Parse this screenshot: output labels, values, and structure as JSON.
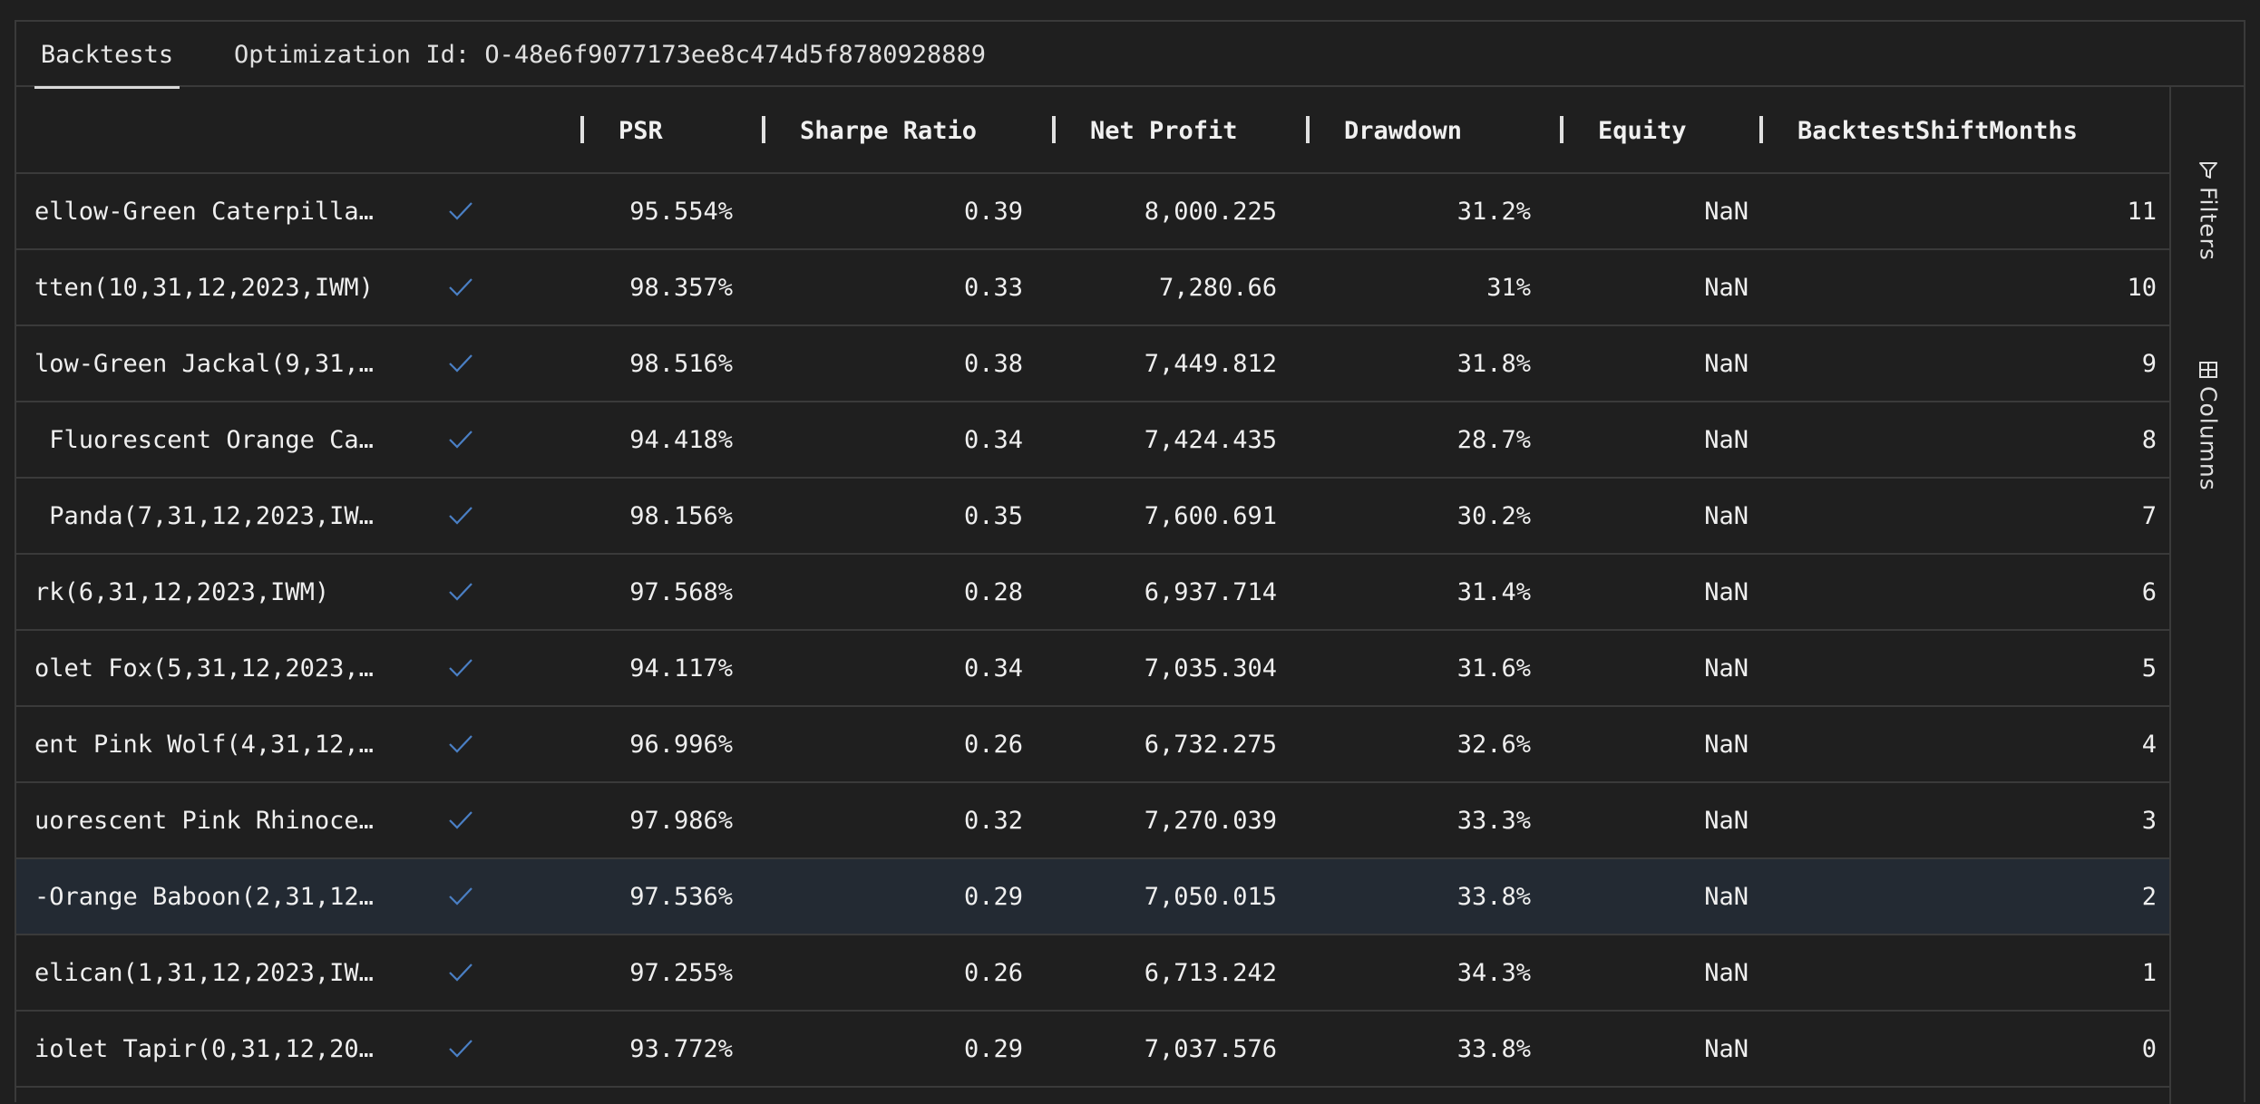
{
  "tabs": {
    "backtests": "Backtests",
    "optimization": "Optimization Id: O-48e6f9077173ee8c474d5f8780928889"
  },
  "columns": {
    "psr": "PSR",
    "sharpe": "Sharpe Ratio",
    "net_profit": "Net Profit",
    "drawdown": "Drawdown",
    "equity": "Equity",
    "shift": "BacktestShiftMonths"
  },
  "sidebar": {
    "filters": "Filters",
    "columns": "Columns"
  },
  "selected_row_index": 9,
  "colors": {
    "background": "#1f1f1f",
    "selected_row": "#232a33",
    "check_accent": "#4a7fc4",
    "border": "#3a3a3a"
  },
  "rows": [
    {
      "name": "ellow-Green Caterpilla…",
      "psr": "95.554%",
      "sharpe": "0.39",
      "net_profit": "8,000.225",
      "drawdown": "31.2%",
      "equity": "NaN",
      "shift": "11"
    },
    {
      "name": "tten(10,31,12,2023,IWM)",
      "psr": "98.357%",
      "sharpe": "0.33",
      "net_profit": "7,280.66",
      "drawdown": "31%",
      "equity": "NaN",
      "shift": "10"
    },
    {
      "name": "low-Green Jackal(9,31,…",
      "psr": "98.516%",
      "sharpe": "0.38",
      "net_profit": "7,449.812",
      "drawdown": "31.8%",
      "equity": "NaN",
      "shift": "9"
    },
    {
      "name": " Fluorescent Orange Ca…",
      "psr": "94.418%",
      "sharpe": "0.34",
      "net_profit": "7,424.435",
      "drawdown": "28.7%",
      "equity": "NaN",
      "shift": "8"
    },
    {
      "name": " Panda(7,31,12,2023,IW…",
      "psr": "98.156%",
      "sharpe": "0.35",
      "net_profit": "7,600.691",
      "drawdown": "30.2%",
      "equity": "NaN",
      "shift": "7"
    },
    {
      "name": "rk(6,31,12,2023,IWM)",
      "psr": "97.568%",
      "sharpe": "0.28",
      "net_profit": "6,937.714",
      "drawdown": "31.4%",
      "equity": "NaN",
      "shift": "6"
    },
    {
      "name": "olet Fox(5,31,12,2023,…",
      "psr": "94.117%",
      "sharpe": "0.34",
      "net_profit": "7,035.304",
      "drawdown": "31.6%",
      "equity": "NaN",
      "shift": "5"
    },
    {
      "name": "ent Pink Wolf(4,31,12,…",
      "psr": "96.996%",
      "sharpe": "0.26",
      "net_profit": "6,732.275",
      "drawdown": "32.6%",
      "equity": "NaN",
      "shift": "4"
    },
    {
      "name": "uorescent Pink Rhinoce…",
      "psr": "97.986%",
      "sharpe": "0.32",
      "net_profit": "7,270.039",
      "drawdown": "33.3%",
      "equity": "NaN",
      "shift": "3"
    },
    {
      "name": "-Orange Baboon(2,31,12…",
      "psr": "97.536%",
      "sharpe": "0.29",
      "net_profit": "7,050.015",
      "drawdown": "33.8%",
      "equity": "NaN",
      "shift": "2"
    },
    {
      "name": "elican(1,31,12,2023,IW…",
      "psr": "97.255%",
      "sharpe": "0.26",
      "net_profit": "6,713.242",
      "drawdown": "34.3%",
      "equity": "NaN",
      "shift": "1"
    },
    {
      "name": "iolet Tapir(0,31,12,20…",
      "psr": "93.772%",
      "sharpe": "0.29",
      "net_profit": "7,037.576",
      "drawdown": "33.8%",
      "equity": "NaN",
      "shift": "0"
    }
  ]
}
